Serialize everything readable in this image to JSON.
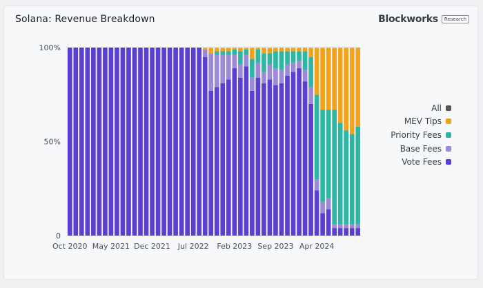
{
  "title": "Solana: Revenue Breakdown",
  "brand": {
    "name": "Blockworks",
    "tag": "Research"
  },
  "legend": [
    {
      "label": "All",
      "color": "#555555"
    },
    {
      "label": "MEV Tips",
      "color": "#f2a31b"
    },
    {
      "label": "Priority Fees",
      "color": "#2db6a3"
    },
    {
      "label": "Base Fees",
      "color": "#9c8ad6"
    },
    {
      "label": "Vote Fees",
      "color": "#5b3fd0"
    }
  ],
  "chart_data": {
    "type": "bar",
    "stacked": true,
    "x_ticks": [
      "Oct 2020",
      "May 2021",
      "Dec 2021",
      "Jul 2022",
      "Feb 2023",
      "Sep 2023",
      "Apr 2024"
    ],
    "y_ticks": [
      "0",
      "50%",
      "100%"
    ],
    "ylim": [
      0,
      100
    ],
    "colors": {
      "Vote Fees": "#5b3fd0",
      "Base Fees": "#9c8ad6",
      "Priority Fees": "#2db6a3",
      "MEV Tips": "#f2a31b"
    },
    "series": [
      {
        "name": "Vote Fees",
        "values": [
          100,
          100,
          100,
          100,
          100,
          100,
          100,
          100,
          100,
          100,
          100,
          100,
          100,
          100,
          100,
          100,
          100,
          100,
          100,
          100,
          100,
          100,
          100,
          95,
          77,
          79,
          81,
          83,
          89,
          84,
          90,
          77,
          84,
          81,
          83,
          80,
          81,
          85,
          87,
          89,
          82,
          70,
          24,
          12,
          14,
          4,
          4,
          4,
          4,
          4
        ]
      },
      {
        "name": "Base Fees",
        "values": [
          0,
          0,
          0,
          0,
          0,
          0,
          0,
          0,
          0,
          0,
          0,
          0,
          0,
          0,
          0,
          0,
          0,
          0,
          0,
          0,
          0,
          0,
          0,
          4,
          20,
          17,
          15,
          13,
          7,
          7,
          6,
          7,
          8,
          6,
          8,
          9,
          7,
          6,
          5,
          4,
          6,
          9,
          6,
          6,
          6,
          2,
          2,
          2,
          2,
          2
        ]
      },
      {
        "name": "Priority Fees",
        "values": [
          0,
          0,
          0,
          0,
          0,
          0,
          0,
          0,
          0,
          0,
          0,
          0,
          0,
          0,
          0,
          0,
          0,
          0,
          0,
          0,
          0,
          0,
          0,
          0,
          0,
          2,
          2,
          2,
          3,
          7,
          3,
          10,
          7,
          10,
          6,
          9,
          10,
          7,
          6,
          5,
          10,
          16,
          45,
          49,
          47,
          61,
          54,
          50,
          48,
          52
        ]
      },
      {
        "name": "MEV Tips",
        "values": [
          0,
          0,
          0,
          0,
          0,
          0,
          0,
          0,
          0,
          0,
          0,
          0,
          0,
          0,
          0,
          0,
          0,
          0,
          0,
          0,
          0,
          0,
          0,
          1,
          3,
          2,
          2,
          2,
          1,
          2,
          1,
          6,
          1,
          3,
          3,
          2,
          2,
          2,
          2,
          2,
          2,
          5,
          25,
          33,
          33,
          33,
          40,
          44,
          46,
          42
        ]
      }
    ]
  }
}
